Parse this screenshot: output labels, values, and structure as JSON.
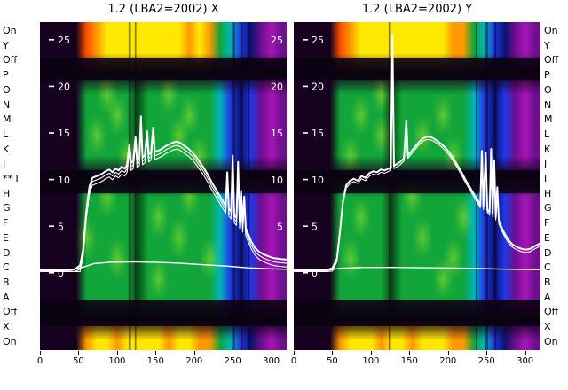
{
  "outer_labels": {
    "left": [
      "On",
      "Y",
      "Off",
      "P",
      "O",
      "N",
      "M",
      "L",
      "K",
      "J",
      "** I",
      "H",
      "G",
      "F",
      "E",
      "D",
      "C",
      "B",
      "A",
      "Off",
      "X",
      "On"
    ],
    "right": [
      "On",
      "Y",
      "Off",
      "P",
      "O",
      "N",
      "M",
      "L",
      "K",
      "J",
      "I",
      "H",
      "G",
      "F",
      "E",
      "D",
      "C",
      "B",
      "A",
      "Off",
      "X",
      "On"
    ]
  },
  "style": {
    "background": "#ffffff",
    "axis_text_color": "#000000",
    "curve_color": "#ffffff",
    "inner_tick_color": "#ffffff",
    "dark_band_color": "rgba(10,2,16,0.88)",
    "dark_col_color": "rgba(8,0,16,0.45)",
    "palette": {
      "K": "#16021e",
      "D": "#0b4a16",
      "G": "#12a53a",
      "g": "#5ecb32",
      "T": "#00b7b4",
      "B": "#2038e8",
      "b": "#0a1470",
      "P": "#6d0f8e",
      "M": "#a816b6",
      "Y": "#ffe800",
      "O": "#ff9800",
      "R": "#ff4f00"
    }
  },
  "chart_data": [
    {
      "type": "heatmap",
      "title": "1.2 (LBA2=2002) X",
      "xlabel": "",
      "ylabel": "",
      "x_range": [
        0,
        320
      ],
      "x_ticks": [
        0,
        50,
        100,
        150,
        200,
        250,
        300
      ],
      "y_ticks_left": [
        25,
        20,
        15,
        10,
        5,
        0
      ],
      "y_ticks_right": [
        25,
        20,
        15,
        10,
        5
      ],
      "grid_rows": [
        "KKKKROYYYYYYYYOYOGTBbPMP",
        "KKKKROYYYYYYYYOYOGTBbPMP",
        "KKKKKKKKKKKKKKKKKKKKKKKK",
        "KKKKGGgGGDGGgGGGGTBbBPMP",
        "KKKKGGGgGDGGGGgGGTBbBPMP",
        "KKKKGgGGGDGGGgGGGTBbBPMP",
        "KKKKGGGGgDGGGGGgGTBbBPMP",
        "KKKKKKKKKKKKKKKKKKKKKKKK",
        "KKKKGGgGGDGGGGgGGTBbBPMP",
        "KKKKGGGGGDGgGGGGGTBbBPMP",
        "KKKKgGGGGDGGGgGGGTBbBPMP",
        "KKKKGGGgGDGGGGGGgTBbBPMP",
        "KKKKGGGGGDGgGGGGGTBbBPMP",
        "KKKKGGGGGDGGGGGGGTBbBPMP",
        "KKKKKKKKKKKKKKKKKKKKKKKK",
        "KKKKOYYOYYYYOYYOOGTBbPMP"
      ],
      "dark_bands": [
        [
          0.108,
          0.176
        ],
        [
          0.451,
          0.522
        ],
        [
          0.846,
          0.927
        ]
      ],
      "dark_cols": [
        {
          "x": 115,
          "w": 3
        },
        {
          "x": 123,
          "w": 2
        },
        {
          "x": 249,
          "w": 4
        },
        {
          "x": 260,
          "w": 3
        },
        {
          "x": 270,
          "w": 2
        }
      ],
      "echo_offsets": [
        0.4,
        0.8
      ],
      "series": [
        {
          "name": "main_curve",
          "points": [
            [
              0,
              0.3
            ],
            [
              38,
              0.3
            ],
            [
              45,
              0.4
            ],
            [
              52,
              0.8
            ],
            [
              56,
              2.5
            ],
            [
              60,
              6.5
            ],
            [
              64,
              9.2
            ],
            [
              68,
              10.2
            ],
            [
              74,
              10.4
            ],
            [
              80,
              10.6
            ],
            [
              85,
              10.9
            ],
            [
              90,
              11.1
            ],
            [
              94,
              10.8
            ],
            [
              98,
              11.2
            ],
            [
              102,
              11.0
            ],
            [
              106,
              11.4
            ],
            [
              110,
              11.2
            ],
            [
              113,
              11.6
            ],
            [
              116,
              13.8
            ],
            [
              118,
              11.8
            ],
            [
              121,
              12.0
            ],
            [
              124,
              14.6
            ],
            [
              126,
              12.1
            ],
            [
              129,
              12.3
            ],
            [
              131,
              16.8
            ],
            [
              133,
              12.4
            ],
            [
              136,
              12.6
            ],
            [
              139,
              15.2
            ],
            [
              141,
              12.7
            ],
            [
              144,
              12.9
            ],
            [
              147,
              15.6
            ],
            [
              149,
              13.0
            ],
            [
              153,
              13.1
            ],
            [
              158,
              13.3
            ],
            [
              163,
              13.6
            ],
            [
              168,
              13.8
            ],
            [
              173,
              14.0
            ],
            [
              178,
              14.1
            ],
            [
              183,
              13.9
            ],
            [
              188,
              13.6
            ],
            [
              193,
              13.3
            ],
            [
              198,
              12.9
            ],
            [
              203,
              12.4
            ],
            [
              208,
              11.8
            ],
            [
              213,
              11.2
            ],
            [
              218,
              10.5
            ],
            [
              223,
              9.7
            ],
            [
              228,
              9.0
            ],
            [
              233,
              8.3
            ],
            [
              238,
              7.6
            ],
            [
              241,
              7.2
            ],
            [
              243,
              10.8
            ],
            [
              245,
              6.9
            ],
            [
              248,
              6.6
            ],
            [
              250,
              12.6
            ],
            [
              252,
              6.2
            ],
            [
              255,
              5.9
            ],
            [
              257,
              11.9
            ],
            [
              259,
              5.6
            ],
            [
              261,
              8.8
            ],
            [
              263,
              5.2
            ],
            [
              265,
              8.2
            ],
            [
              267,
              4.8
            ],
            [
              270,
              4.2
            ],
            [
              274,
              3.4
            ],
            [
              279,
              2.7
            ],
            [
              284,
              2.3
            ],
            [
              290,
              2.0
            ],
            [
              296,
              1.8
            ],
            [
              303,
              1.6
            ],
            [
              312,
              1.5
            ],
            [
              320,
              1.45
            ]
          ]
        },
        {
          "name": "flat_curve",
          "points": [
            [
              0,
              0.25
            ],
            [
              40,
              0.3
            ],
            [
              55,
              0.6
            ],
            [
              70,
              1.0
            ],
            [
              90,
              1.15
            ],
            [
              120,
              1.2
            ],
            [
              150,
              1.15
            ],
            [
              180,
              1.05
            ],
            [
              210,
              0.9
            ],
            [
              240,
              0.75
            ],
            [
              270,
              0.55
            ],
            [
              300,
              0.45
            ],
            [
              320,
              0.4
            ]
          ]
        }
      ]
    },
    {
      "type": "heatmap",
      "title": "1.2 (LBA2=2002) Y",
      "xlabel": "",
      "ylabel": "",
      "x_range": [
        0,
        320
      ],
      "x_ticks": [
        0,
        50,
        100,
        150,
        200,
        250,
        300
      ],
      "y_ticks_left": [
        25,
        20,
        15,
        10,
        5,
        0
      ],
      "y_ticks_right": [],
      "grid_rows": [
        "KKKKROYYYYYYYYYOOGTBbPMP",
        "KKKKROYYYYYYYYYOOGTBbPMP",
        "KKKKKKKKKKKKKKKKKKKKKKKK",
        "KKKKGGGGgDGGGGGGGTBbBPMP",
        "KKKKGGgGGDGGGGgGGTBbBPMP",
        "KKKKGGGGgDGGgGGGGTBbBPMP",
        "KKKKGgGGGDGGGGGgGTBbBPMP",
        "KKKKKKKKKKKKKKKKKKKKKKKK",
        "KKKKGGGGGDGgGGGGGTBbBPMP",
        "KKKKGGgGGDGGGGGGgTBbBPMP",
        "KKKKGGGGGDGGgGGGGTBbBPMP",
        "KKKKGgGGGDGGGGGgGTBbBPMP",
        "KKKKGGGGGDGGGGgGGTBbBPMP",
        "KKKKGGGGGDGGGGGGGTBbBPMP",
        "KKKKKKKKKKKKKKKKKKKKKKKK",
        "KKKKOYYYOYYOYYYOOGTBbPMP"
      ],
      "dark_bands": [
        [
          0.108,
          0.176
        ],
        [
          0.451,
          0.522
        ],
        [
          0.846,
          0.927
        ]
      ],
      "dark_cols": [
        {
          "x": 123,
          "w": 3
        },
        {
          "x": 236,
          "w": 2
        },
        {
          "x": 248,
          "w": 4
        },
        {
          "x": 260,
          "w": 3
        }
      ],
      "echo_offsets": [
        0.3
      ],
      "series": [
        {
          "name": "main_curve",
          "points": [
            [
              0,
              0.3
            ],
            [
              42,
              0.3
            ],
            [
              50,
              0.5
            ],
            [
              56,
              1.5
            ],
            [
              60,
              4.5
            ],
            [
              64,
              7.8
            ],
            [
              68,
              9.4
            ],
            [
              73,
              9.9
            ],
            [
              78,
              10.1
            ],
            [
              83,
              9.9
            ],
            [
              88,
              10.4
            ],
            [
              93,
              10.2
            ],
            [
              98,
              10.7
            ],
            [
              103,
              10.9
            ],
            [
              108,
              10.8
            ],
            [
              113,
              11.1
            ],
            [
              118,
              11.0
            ],
            [
              123,
              11.2
            ],
            [
              126,
              11.3
            ],
            [
              128,
              25.6
            ],
            [
              130,
              11.5
            ],
            [
              134,
              11.7
            ],
            [
              138,
              11.9
            ],
            [
              143,
              12.3
            ],
            [
              146,
              16.4
            ],
            [
              148,
              12.6
            ],
            [
              152,
              13.0
            ],
            [
              157,
              13.5
            ],
            [
              162,
              14.0
            ],
            [
              167,
              14.4
            ],
            [
              172,
              14.6
            ],
            [
              177,
              14.6
            ],
            [
              182,
              14.4
            ],
            [
              187,
              14.1
            ],
            [
              192,
              13.8
            ],
            [
              197,
              13.4
            ],
            [
              202,
              12.9
            ],
            [
              207,
              12.3
            ],
            [
              212,
              11.6
            ],
            [
              217,
              10.9
            ],
            [
              222,
              10.1
            ],
            [
              227,
              9.4
            ],
            [
              232,
              8.7
            ],
            [
              237,
              8.0
            ],
            [
              240,
              7.6
            ],
            [
              242,
              7.3
            ],
            [
              244,
              13.1
            ],
            [
              246,
              7.1
            ],
            [
              249,
              12.9
            ],
            [
              251,
              6.8
            ],
            [
              254,
              6.5
            ],
            [
              256,
              13.3
            ],
            [
              258,
              6.3
            ],
            [
              260,
              12.1
            ],
            [
              262,
              6.0
            ],
            [
              264,
              9.2
            ],
            [
              266,
              5.6
            ],
            [
              269,
              5.0
            ],
            [
              273,
              4.3
            ],
            [
              278,
              3.6
            ],
            [
              283,
              3.1
            ],
            [
              289,
              2.8
            ],
            [
              295,
              2.6
            ],
            [
              301,
              2.5
            ],
            [
              307,
              2.6
            ],
            [
              313,
              2.9
            ],
            [
              320,
              3.2
            ]
          ]
        },
        {
          "name": "flat_curve",
          "points": [
            [
              0,
              0.25
            ],
            [
              45,
              0.3
            ],
            [
              60,
              0.5
            ],
            [
              90,
              0.6
            ],
            [
              130,
              0.6
            ],
            [
              180,
              0.55
            ],
            [
              230,
              0.5
            ],
            [
              280,
              0.4
            ],
            [
              320,
              0.35
            ]
          ]
        }
      ]
    }
  ]
}
